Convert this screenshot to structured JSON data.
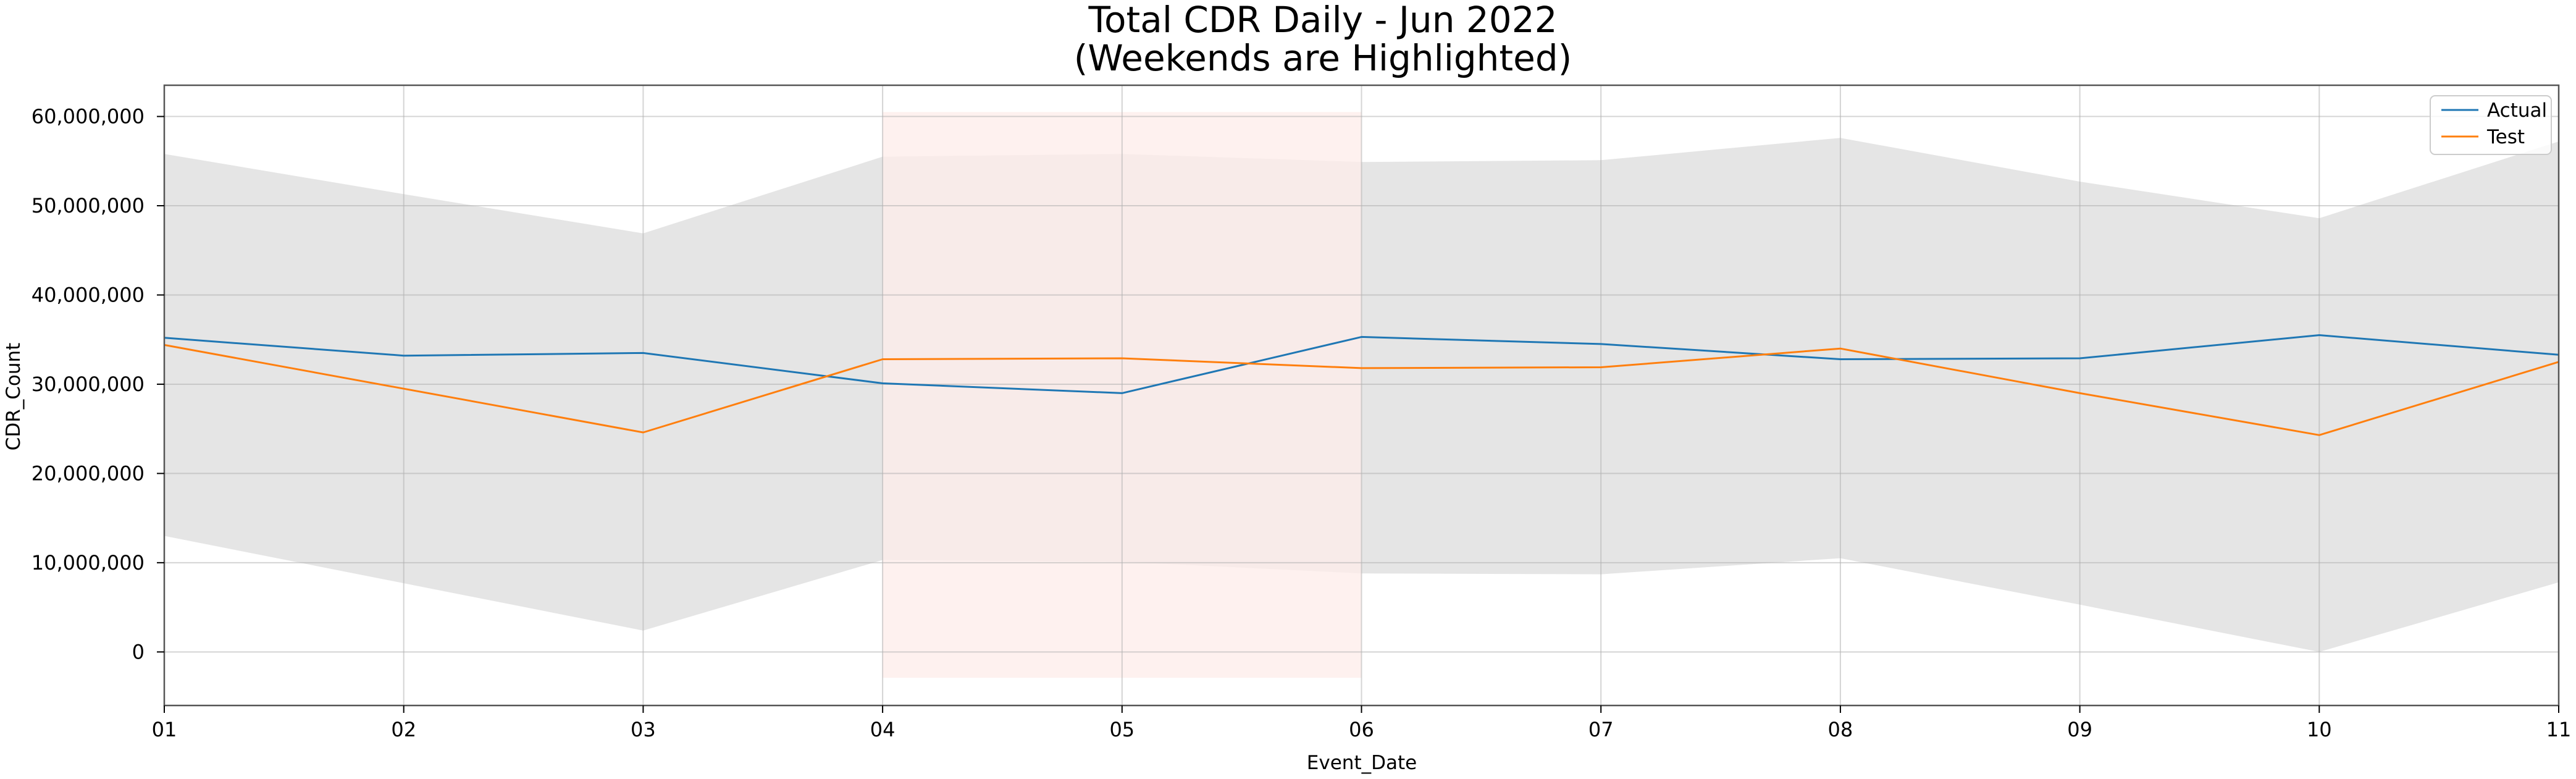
{
  "chart_data": {
    "type": "line",
    "title_line1": "Total CDR Daily - Jun 2022",
    "title_line2": "(Weekends are Highlighted)",
    "xlabel": "Event_Date",
    "ylabel": "CDR_Count",
    "categories": [
      "01",
      "02",
      "03",
      "04",
      "05",
      "06",
      "07",
      "08",
      "09",
      "10",
      "11"
    ],
    "ylim": [
      -6000000,
      63500000
    ],
    "yticks": [
      0,
      10000000,
      20000000,
      30000000,
      40000000,
      50000000,
      60000000
    ],
    "ytick_labels": [
      "0",
      "10,000,000",
      "20,000,000",
      "30,000,000",
      "40,000,000",
      "50,000,000",
      "60,000,000"
    ],
    "grid": true,
    "legend_position": "top-right",
    "series": [
      {
        "name": "Actual",
        "color": "#1f77b4",
        "values": [
          35200000,
          33200000,
          33500000,
          30100000,
          29000000,
          35300000,
          34500000,
          32800000,
          32900000,
          35500000,
          33300000
        ]
      },
      {
        "name": "Test",
        "color": "#ff7f0e",
        "values": [
          34400000,
          29500000,
          24600000,
          32800000,
          32900000,
          31800000,
          31900000,
          34000000,
          29000000,
          24300000,
          32500000
        ]
      }
    ],
    "band": {
      "color": "#e5e5e5",
      "upper": [
        55800000,
        51300000,
        46900000,
        55500000,
        55800000,
        54900000,
        55100000,
        57600000,
        52700000,
        48600000,
        57200000
      ],
      "lower": [
        13000000,
        7700000,
        2400000,
        10300000,
        10100000,
        8800000,
        8700000,
        10500000,
        5300000,
        0,
        7800000
      ]
    },
    "weekend_highlight": {
      "color": "#fdecea",
      "x_start": "04",
      "x_end": "06",
      "y_range": [
        -2900000,
        60500000
      ]
    }
  }
}
